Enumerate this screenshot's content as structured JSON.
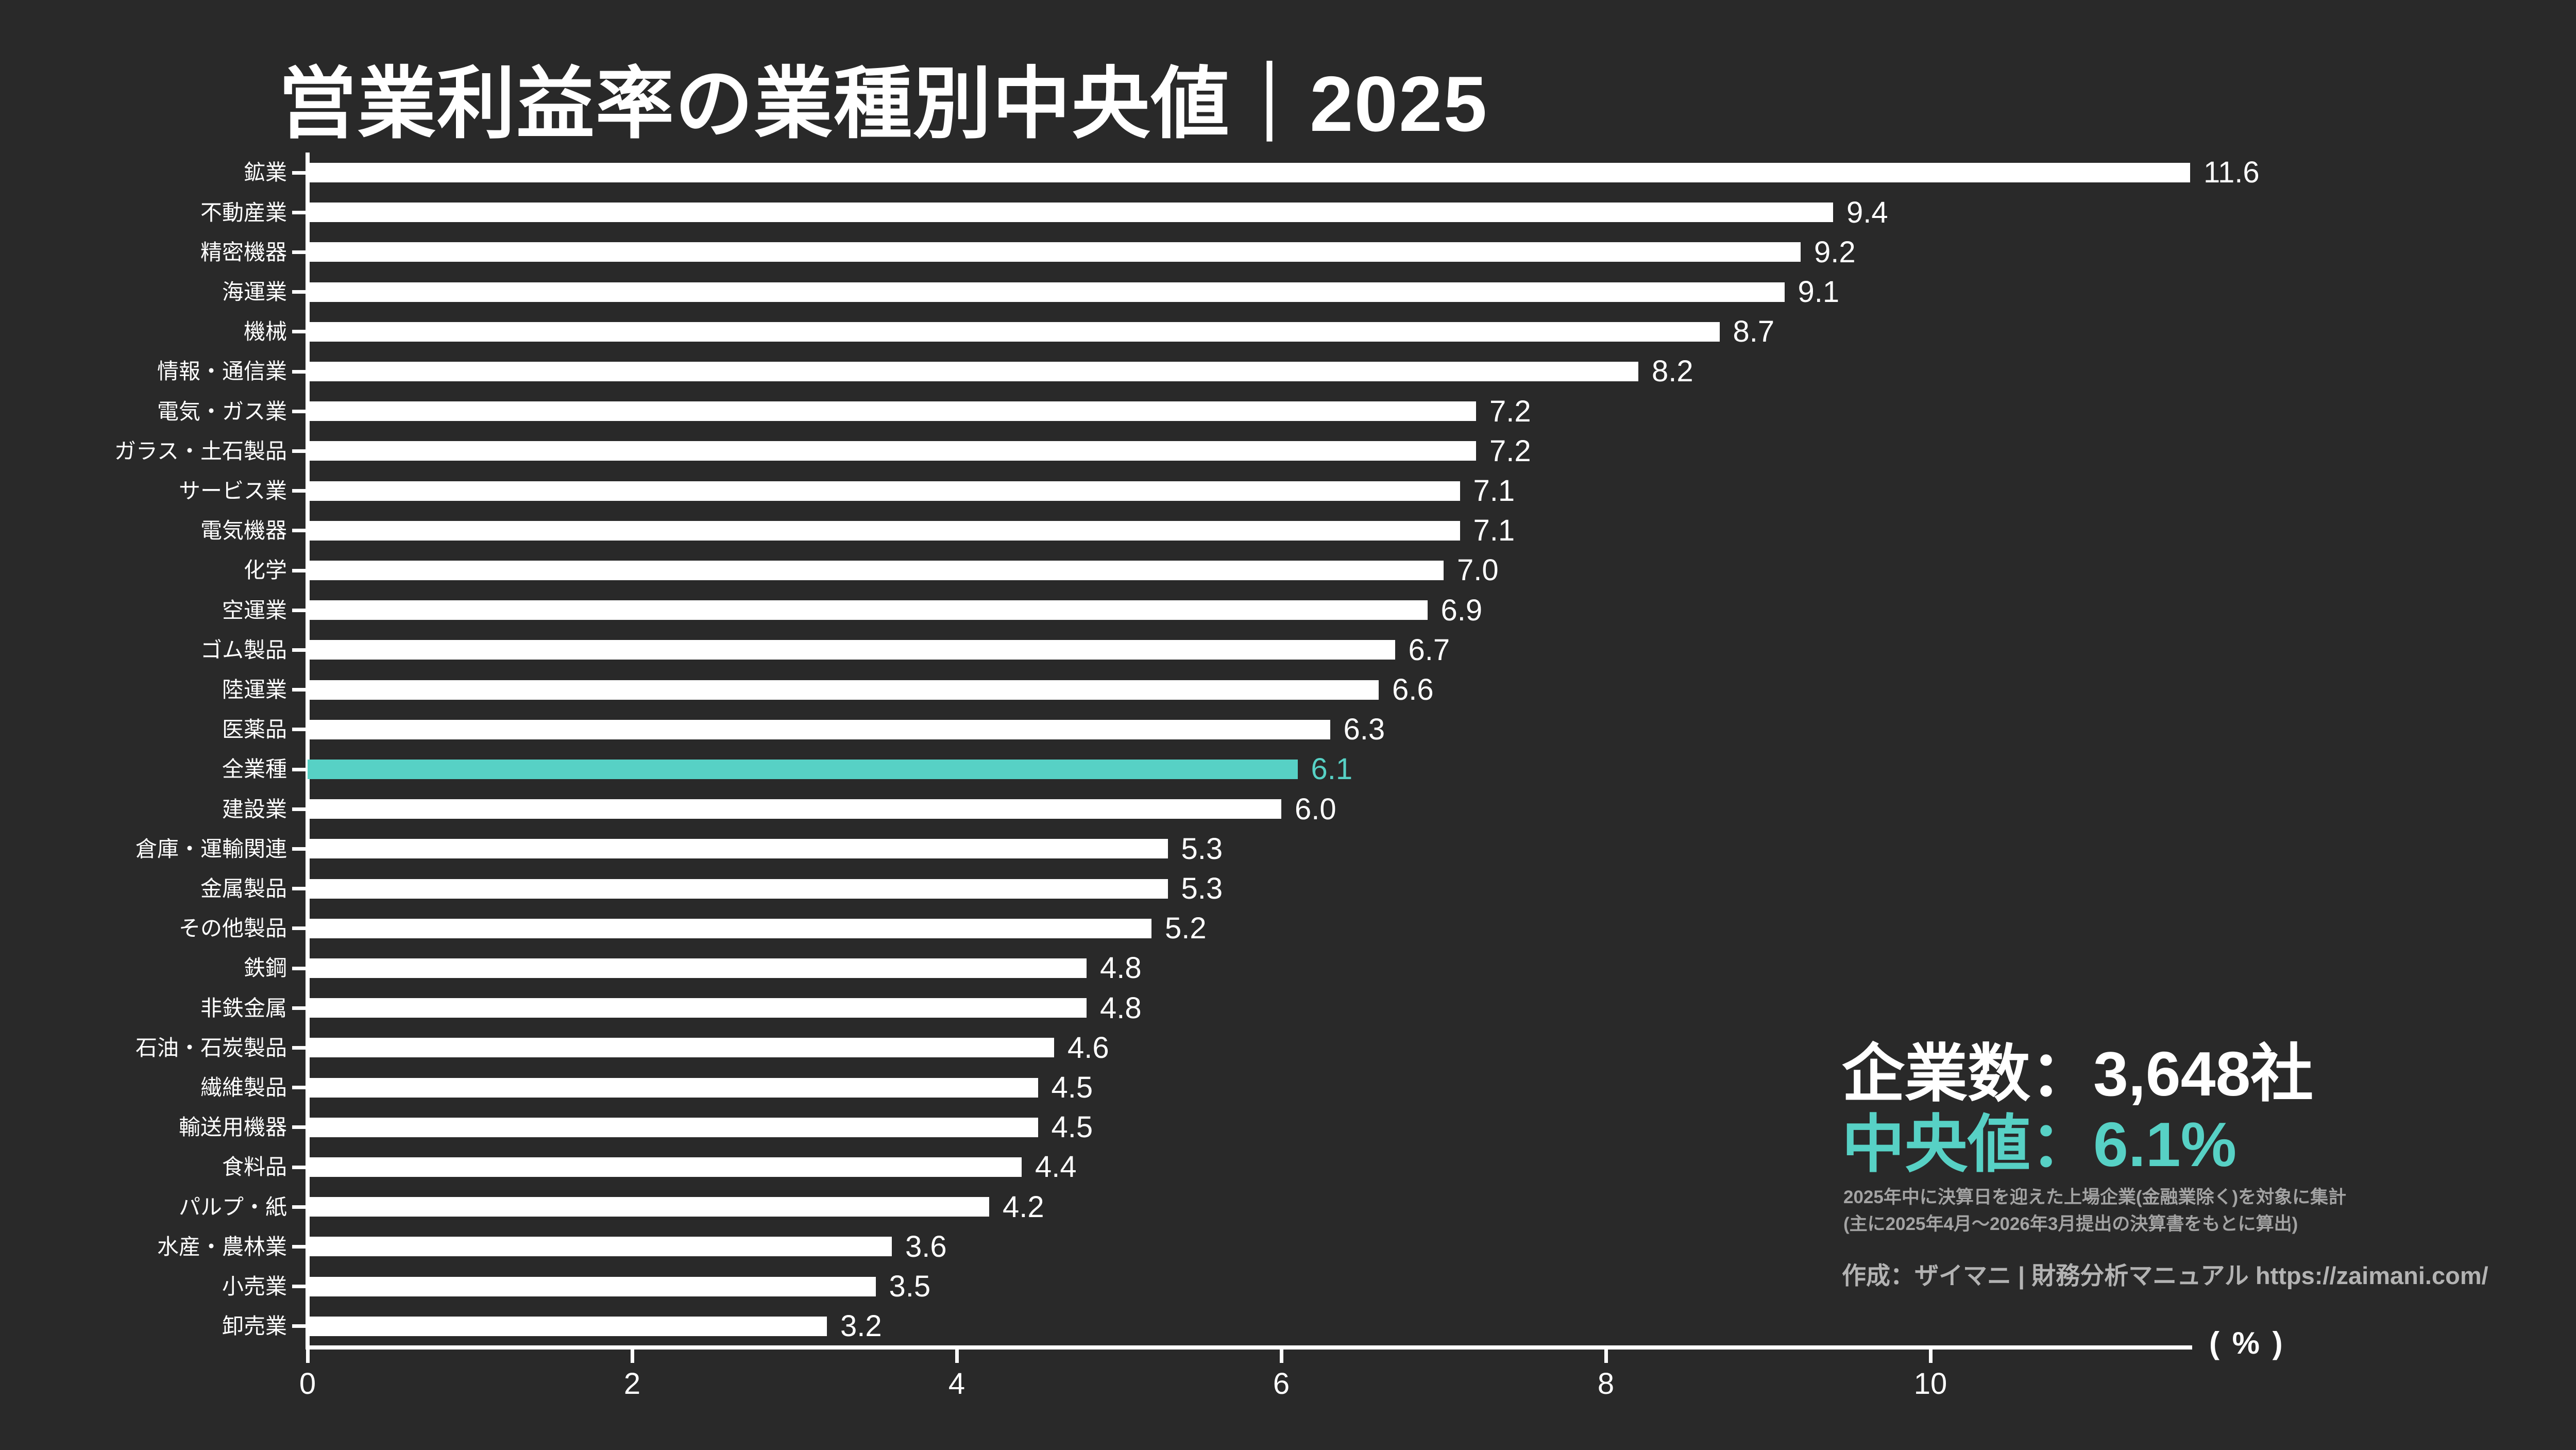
{
  "title": "営業利益率の業種別中央値｜2025",
  "colors": {
    "background": "#292929",
    "bar": "#ffffff",
    "highlight": "#57d1c5",
    "text": "#ffffff",
    "muted": "#a3a3a3"
  },
  "chart_data": {
    "type": "bar",
    "orientation": "horizontal",
    "title": "営業利益率の業種別中央値｜2025",
    "unit": "%",
    "xlabel": "( % )",
    "x_ticks": [
      0,
      2,
      4,
      6,
      8,
      10
    ],
    "xlim": [
      0,
      11.6
    ],
    "grid": false,
    "legend": "none",
    "categories": [
      "鉱業",
      "不動産業",
      "精密機器",
      "海運業",
      "機械",
      "情報・通信業",
      "電気・ガス業",
      "ガラス・土石製品",
      "サービス業",
      "電気機器",
      "化学",
      "空運業",
      "ゴム製品",
      "陸運業",
      "医薬品",
      "全業種",
      "建設業",
      "倉庫・運輸関連",
      "金属製品",
      "その他製品",
      "鉄鋼",
      "非鉄金属",
      "石油・石炭製品",
      "繊維製品",
      "輸送用機器",
      "食料品",
      "パルプ・紙",
      "水産・農林業",
      "小売業",
      "卸売業"
    ],
    "values": [
      11.6,
      9.4,
      9.2,
      9.1,
      8.7,
      8.2,
      7.2,
      7.2,
      7.1,
      7.1,
      7.0,
      6.9,
      6.7,
      6.6,
      6.3,
      6.1,
      6.0,
      5.3,
      5.3,
      5.2,
      4.8,
      4.8,
      4.6,
      4.5,
      4.5,
      4.4,
      4.2,
      3.6,
      3.5,
      3.2
    ],
    "value_labels": [
      "11.6",
      "9.4",
      "9.2",
      "9.1",
      "8.7",
      "8.2",
      "7.2",
      "7.2",
      "7.1",
      "7.1",
      "7.0",
      "6.9",
      "6.7",
      "6.6",
      "6.3",
      "6.1",
      "6.0",
      "5.3",
      "5.3",
      "5.2",
      "4.8",
      "4.8",
      "4.6",
      "4.5",
      "4.5",
      "4.4",
      "4.2",
      "3.6",
      "3.5",
      "3.2"
    ],
    "highlight_category": "全業種",
    "highlight_value": 6.1
  },
  "summary": {
    "companies_label": "企業数：3,648社",
    "median_label": "中央値：6.1%"
  },
  "notes": [
    "2025年中に決算日を迎えた上場企業(金融業除く)を対象に集計",
    "(主に2025年4月〜2026年3月提出の決算書をもとに算出)"
  ],
  "credit": "作成：ザイマニ | 財務分析マニュアル https://zaimani.com/"
}
